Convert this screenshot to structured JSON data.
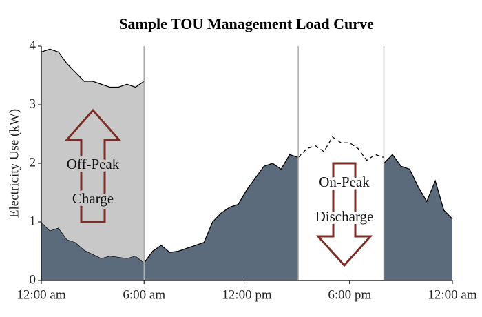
{
  "chart_data": {
    "type": "area",
    "title": "Sample TOU Management Load Curve",
    "y_label": "Electricity Use (kW)",
    "x": [
      0,
      0.5,
      1,
      1.5,
      2,
      2.5,
      3,
      3.5,
      4,
      4.5,
      5,
      5.5,
      6,
      6.5,
      7,
      7.5,
      8,
      8.5,
      9,
      9.5,
      10,
      10.5,
      11,
      11.5,
      12,
      12.5,
      13,
      13.5,
      14,
      14.5,
      15,
      15.5,
      16,
      16.5,
      17,
      17.5,
      18,
      18.5,
      19,
      19.5,
      20,
      20.5,
      21,
      21.5,
      22,
      22.5,
      23,
      23.5,
      24
    ],
    "series": [
      {
        "color": "#5b6b7b",
        "fill": true,
        "values": [
          1.0,
          0.85,
          0.9,
          0.7,
          0.65,
          0.52,
          0.45,
          0.38,
          0.42,
          0.4,
          0.38,
          0.42,
          0.3,
          0.5,
          0.6,
          0.48,
          0.5,
          0.55,
          0.6,
          0.65,
          1.0,
          1.15,
          1.25,
          1.3,
          1.55,
          1.75,
          1.95,
          2.0,
          1.9,
          2.15,
          2.1,
          null,
          null,
          null,
          null,
          null,
          null,
          null,
          null,
          null,
          2.0,
          2.15,
          1.95,
          1.9,
          1.6,
          1.35,
          1.7,
          1.2,
          1.05
        ]
      },
      {
        "color": "#c8c8c8",
        "fill": true,
        "values": [
          3.9,
          3.95,
          3.9,
          3.7,
          3.55,
          3.4,
          3.4,
          3.35,
          3.3,
          3.3,
          3.35,
          3.3,
          3.4,
          null,
          null,
          null,
          null,
          null,
          null,
          null,
          null,
          null,
          null,
          null,
          null,
          null,
          null,
          null,
          null,
          null,
          null,
          null,
          null,
          null,
          null,
          null,
          null,
          null,
          null,
          null,
          null,
          null,
          null,
          null,
          null,
          null,
          null,
          null,
          null
        ]
      },
      {
        "color": "#000000",
        "dashed": true,
        "values": [
          null,
          null,
          null,
          null,
          null,
          null,
          null,
          null,
          null,
          null,
          null,
          null,
          null,
          null,
          null,
          null,
          null,
          null,
          null,
          null,
          null,
          null,
          null,
          null,
          null,
          null,
          null,
          null,
          null,
          null,
          2.1,
          2.25,
          2.3,
          2.2,
          2.45,
          2.35,
          2.35,
          2.25,
          2.05,
          2.15,
          2.1,
          null,
          null,
          null,
          null,
          null,
          null,
          null,
          null
        ]
      }
    ],
    "vlines": [
      6,
      15,
      20
    ],
    "xlim": [
      0,
      24
    ],
    "xticks": [
      {
        "value": 0,
        "label": "12:00 am"
      },
      {
        "value": 6,
        "label": "6:00 am"
      },
      {
        "value": 12,
        "label": "12:00 pm"
      },
      {
        "value": 18,
        "label": "6:00 pm"
      },
      {
        "value": 24,
        "label": "12:00 am"
      }
    ],
    "ylim": [
      0,
      4
    ],
    "yticks": [
      0,
      1,
      2,
      3,
      4
    ],
    "annotations": [
      "Off-Peak",
      "Charge",
      "On-Peak",
      "Discharge"
    ]
  }
}
